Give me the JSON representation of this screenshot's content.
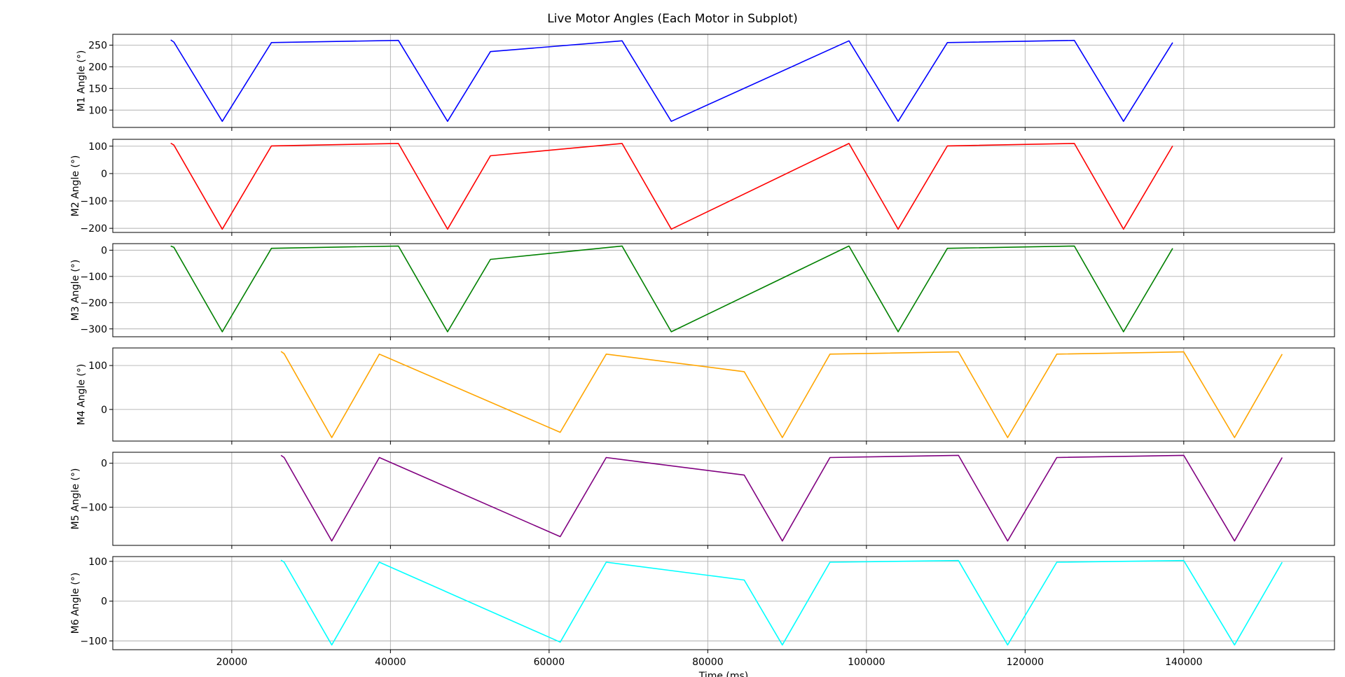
{
  "figure_title": "Live Motor Angles (Each Motor in Subplot)",
  "chart_data": [
    {
      "type": "line",
      "ylabel": "M1 Angle (°)",
      "xlabel": "",
      "xlim": [
        5000,
        159000
      ],
      "ylim": [
        60,
        275
      ],
      "xticks": [
        20000,
        40000,
        60000,
        80000,
        100000,
        120000,
        140000
      ],
      "yticks": [
        100,
        150,
        200,
        250
      ],
      "grid": true,
      "series": [
        {
          "color": "#0000ff",
          "x": [
            12300,
            12700,
            18800,
            25000,
            41000,
            47200,
            52600,
            69200,
            75400,
            97800,
            104000,
            110200,
            126200,
            132400,
            138600
          ],
          "y": [
            262,
            257,
            74,
            256,
            261,
            74,
            235,
            260,
            74,
            260,
            74,
            256,
            261,
            74,
            256
          ]
        }
      ]
    },
    {
      "type": "line",
      "ylabel": "M2 Angle (°)",
      "xlabel": "",
      "xlim": [
        5000,
        159000
      ],
      "ylim": [
        -215,
        125
      ],
      "xticks": [
        20000,
        40000,
        60000,
        80000,
        100000,
        120000,
        140000
      ],
      "yticks": [
        -200,
        -100,
        0,
        100
      ],
      "grid": true,
      "series": [
        {
          "color": "#ff0000",
          "x": [
            12300,
            12700,
            18800,
            25000,
            41000,
            47200,
            52600,
            69200,
            75400,
            97800,
            104000,
            110200,
            126200,
            132400,
            138600
          ],
          "y": [
            111,
            104,
            -203,
            101,
            110,
            -203,
            65,
            110,
            -203,
            110,
            -203,
            101,
            110,
            -203,
            101
          ]
        }
      ]
    },
    {
      "type": "line",
      "ylabel": "M3 Angle (°)",
      "xlabel": "",
      "xlim": [
        5000,
        159000
      ],
      "ylim": [
        -330,
        25
      ],
      "xticks": [
        20000,
        40000,
        60000,
        80000,
        100000,
        120000,
        140000
      ],
      "yticks": [
        -300,
        -200,
        -100,
        0
      ],
      "grid": true,
      "series": [
        {
          "color": "#008000",
          "x": [
            12300,
            12700,
            18800,
            25000,
            41000,
            47200,
            52600,
            69200,
            75400,
            97800,
            104000,
            110200,
            126200,
            132400,
            138600
          ],
          "y": [
            16,
            11,
            -311,
            7,
            16,
            -311,
            -35,
            16,
            -311,
            16,
            -311,
            7,
            16,
            -311,
            7
          ]
        }
      ]
    },
    {
      "type": "line",
      "ylabel": "M4 Angle (°)",
      "xlabel": "",
      "xlim": [
        5000,
        159000
      ],
      "ylim": [
        -72,
        140
      ],
      "xticks": [
        20000,
        40000,
        60000,
        80000,
        100000,
        120000,
        140000
      ],
      "yticks": [
        0,
        100
      ],
      "grid": true,
      "series": [
        {
          "color": "#ffa500",
          "x": [
            26200,
            26600,
            32600,
            38600,
            61400,
            67200,
            84600,
            89400,
            95400,
            111600,
            117800,
            124000,
            140000,
            146400,
            152400
          ],
          "y": [
            132,
            127,
            -64,
            126,
            -52,
            126,
            86,
            -64,
            126,
            131,
            -64,
            126,
            131,
            -64,
            126
          ]
        }
      ]
    },
    {
      "type": "line",
      "ylabel": "M5 Angle (°)",
      "xlabel": "",
      "xlim": [
        5000,
        159000
      ],
      "ylim": [
        -187,
        25
      ],
      "xticks": [
        20000,
        40000,
        60000,
        80000,
        100000,
        120000,
        140000
      ],
      "yticks": [
        -100,
        0
      ],
      "grid": true,
      "series": [
        {
          "color": "#800080",
          "x": [
            26200,
            26600,
            32600,
            38600,
            61400,
            67200,
            84600,
            89400,
            95400,
            111600,
            117800,
            124000,
            140000,
            146400,
            152400
          ],
          "y": [
            18,
            13,
            -177,
            13,
            -167,
            13,
            -27,
            -177,
            13,
            18,
            -177,
            13,
            18,
            -177,
            13
          ]
        }
      ]
    },
    {
      "type": "line",
      "ylabel": "M6 Angle (°)",
      "xlabel": "Time (ms)",
      "xlim": [
        5000,
        159000
      ],
      "ylim": [
        -122,
        112
      ],
      "xticks": [
        20000,
        40000,
        60000,
        80000,
        100000,
        120000,
        140000
      ],
      "yticks": [
        -100,
        0,
        100
      ],
      "grid": true,
      "series": [
        {
          "color": "#00ffff",
          "x": [
            26200,
            26600,
            32600,
            38600,
            61400,
            67200,
            84600,
            89400,
            95400,
            111600,
            117800,
            124000,
            140000,
            146400,
            152400
          ],
          "y": [
            103,
            98,
            -110,
            98,
            -103,
            98,
            53,
            -110,
            98,
            102,
            -110,
            98,
            102,
            -110,
            98
          ]
        }
      ]
    }
  ]
}
